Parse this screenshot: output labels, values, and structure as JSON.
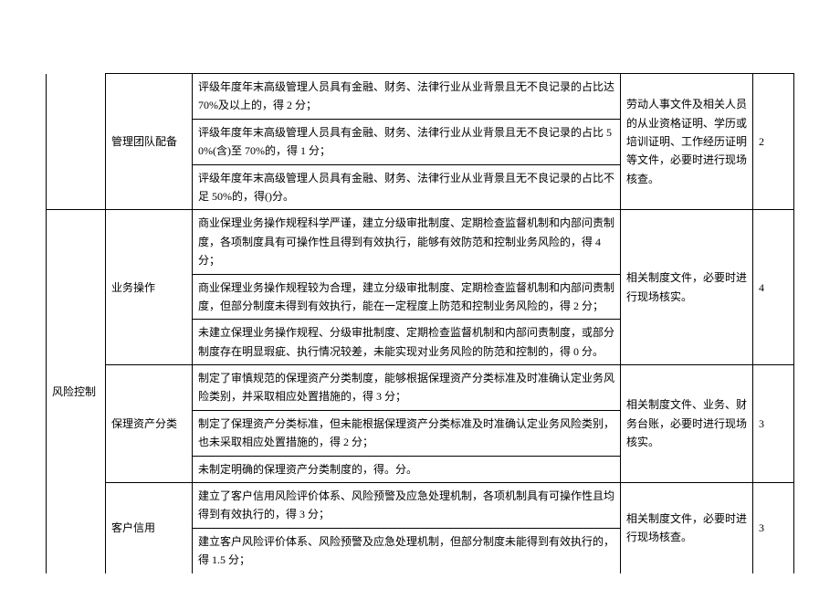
{
  "section1": {
    "sub": "管理团队配备",
    "rows": [
      "评级年度年末高级管理人员具有金融、财务、法律行业从业背景且无不良记录的占比达 70%及以上的，得 2 分；",
      "评级年度年末高级管理人员具有金融、财务、法律行业从业背景且无不良记录的占比 50%(含)至 70%的，得 1 分；",
      "评级年度年末高级管理人员具有金融、财务、法律行业从业背景且无不良记录的占比不足 50%的，得()分。"
    ],
    "ref": "劳动人事文件及相关人员的从业资格证明、学历或培训证明、工作经历证明等文件，必要时进行现场核查。",
    "score": "2"
  },
  "section2": {
    "cat": "风险控制",
    "groups": [
      {
        "sub": "业务操作",
        "rows": [
          "商业保理业务操作规程科学严谨，建立分级审批制度、定期检查监督机制和内部问责制度，各项制度具有可操作性且得到有效执行，能够有效防范和控制业务风险的，得 4 分；",
          "商业保理业务操作规程较为合理，建立分级审批制度、定期检查监督机制和内部问责制度，但部分制度未得到有效执行，能在一定程度上防范和控制业务风险的，得 2 分；",
          "未建立保理业务操作规程、分级审批制度、定期检查监督机制和内部问责制度，或部分制度存在明显瑕疵、执行情况较差，未能实现对业务风险的防范和控制的，得 0 分。"
        ],
        "ref": "相关制度文件，必要时进行现场核实。",
        "score": "4"
      },
      {
        "sub": "保理资产分类",
        "rows": [
          "制定了审慎规范的保理资产分类制度，能够根据保理资产分类标准及时准确认定业务风险类别，并采取相应处置措施的，得 3 分；",
          "制定了保理资产分类标准，但未能根据保理资产分类标准及时准确认定业务风险类别，也未采取相应处置措施的，得 2 分；",
          "未制定明确的保理资产分类制度的，得。分。"
        ],
        "ref": "相关制度文件、业务、财务台账，必要时进行现场核实。",
        "score": "3"
      },
      {
        "sub": "客户信用",
        "rows": [
          "建立了客户信用风险评价体系、风险预警及应急处理机制，各项机制具有可操作性且均得到有效执行的，得 3 分；",
          "建立客户风险评价体系、风险预警及应急处理机制，但部分制度未能得到有效执行的，得 1.5 分；"
        ],
        "ref": "相关制度文件，必要时进行现场核查。",
        "score": "3"
      }
    ]
  }
}
